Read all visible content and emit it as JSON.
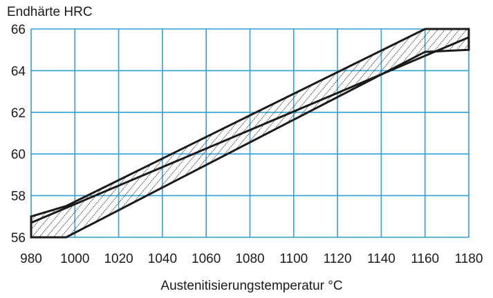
{
  "chart_data": {
    "type": "area",
    "title": "",
    "ylabel": "Endhärte HRC",
    "xlabel": "Austenitisierungstemperatur °C",
    "x_ticks": [
      "980",
      "1000",
      "1020",
      "1040",
      "1060",
      "1080",
      "1100",
      "1120",
      "1140",
      "1160",
      "1180"
    ],
    "y_ticks": [
      "56",
      "58",
      "60",
      "62",
      "64",
      "66"
    ],
    "xlim": [
      980,
      1180
    ],
    "ylim": [
      56,
      66
    ],
    "grid": true,
    "series": [
      {
        "values": [
          {
            "x": 980,
            "y_lower": 56,
            "y_upper": 57
          },
          {
            "x": 996,
            "y_lower": 56,
            "y_upper": 57.5
          },
          {
            "x": 1160,
            "y_lower": 64.9,
            "y_upper": 66
          },
          {
            "x": 1180,
            "y_lower": 65,
            "y_upper": 66
          }
        ],
        "center_line": [
          {
            "x": 980,
            "y": 56.7
          },
          {
            "x": 1180,
            "y": 65.6
          }
        ]
      }
    ],
    "colors": {
      "grid": "#2f9fd8",
      "band_outline": "#1a1a1a",
      "hatch": "#2a2a2a",
      "text": "#1a1a1a"
    }
  }
}
